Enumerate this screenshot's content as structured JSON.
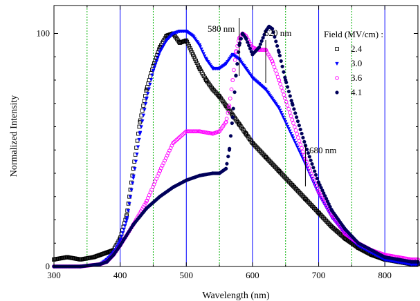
{
  "chart_data": {
    "type": "scatter",
    "title": "",
    "xlabel": "Wavelength (nm)",
    "ylabel": "Normalized Intensity",
    "xlim": [
      300,
      850
    ],
    "ylim": [
      0,
      112
    ],
    "x_ticks": [
      "300",
      "400",
      "500",
      "600",
      "700",
      "800"
    ],
    "y_ticks": [
      "0",
      "100"
    ],
    "y_tick_values": [
      0,
      100
    ],
    "grid": {
      "major_x": [
        400,
        500,
        600,
        700,
        800
      ],
      "major_color": "#0000ff",
      "minor_x": [
        350,
        450,
        550,
        650,
        750
      ],
      "minor_color": "#00b000"
    },
    "legend": {
      "title": "Field (MV/cm) :",
      "position": "top-right"
    },
    "annotations": [
      {
        "text": "580 nm",
        "x": 580
      },
      {
        "text": "620 nm",
        "x": 620
      },
      {
        "text": "680 nm",
        "x": 680
      }
    ],
    "series": [
      {
        "name": "2.4",
        "color": "#000000",
        "marker": "square-open",
        "x": [
          300,
          320,
          340,
          360,
          380,
          390,
          400,
          410,
          420,
          430,
          440,
          450,
          460,
          470,
          480,
          490,
          500,
          510,
          520,
          530,
          540,
          550,
          560,
          570,
          580,
          590,
          600,
          620,
          640,
          660,
          680,
          700,
          720,
          740,
          760,
          780,
          800,
          820,
          840,
          850
        ],
        "y": [
          3,
          4,
          3,
          4,
          6,
          7,
          12,
          22,
          42,
          62,
          76,
          86,
          94,
          99,
          100,
          96,
          97,
          91,
          85,
          80,
          76,
          73,
          69,
          65,
          61,
          57,
          53,
          47,
          41,
          35,
          29,
          23,
          17,
          12,
          8,
          5,
          3,
          2,
          1,
          1
        ]
      },
      {
        "name": "3.0",
        "color": "#0000ff",
        "marker": "triangle-down-filled",
        "x": [
          300,
          340,
          370,
          380,
          390,
          400,
          410,
          420,
          430,
          440,
          450,
          460,
          470,
          480,
          490,
          500,
          510,
          520,
          530,
          540,
          550,
          560,
          570,
          580,
          590,
          600,
          620,
          640,
          660,
          680,
          700,
          720,
          740,
          760,
          780,
          800,
          820,
          840,
          850
        ],
        "y": [
          0,
          0,
          1,
          3,
          6,
          11,
          20,
          38,
          57,
          72,
          84,
          92,
          97,
          100,
          101,
          101,
          99,
          95,
          89,
          85,
          85,
          87,
          91,
          89,
          85,
          81,
          76,
          68,
          56,
          44,
          31,
          21,
          14,
          9,
          6,
          3,
          2,
          1,
          1
        ]
      },
      {
        "name": "3.6",
        "color": "#ff00ff",
        "marker": "circle-open",
        "x": [
          300,
          340,
          370,
          380,
          390,
          400,
          420,
          440,
          460,
          480,
          500,
          520,
          540,
          550,
          560,
          565,
          570,
          575,
          580,
          585,
          590,
          600,
          610,
          620,
          630,
          640,
          660,
          680,
          700,
          720,
          740,
          760,
          780,
          800,
          820,
          840,
          850
        ],
        "y": [
          0,
          0,
          1,
          2,
          5,
          9,
          18,
          28,
          41,
          53,
          58,
          58,
          57,
          58,
          62,
          69,
          80,
          92,
          98,
          100,
          99,
          94,
          93,
          93,
          88,
          80,
          63,
          46,
          32,
          22,
          14,
          10,
          7,
          5,
          4,
          3,
          3
        ]
      },
      {
        "name": "4.1",
        "color": "#00005a",
        "marker": "circle-filled",
        "x": [
          300,
          340,
          370,
          380,
          390,
          400,
          420,
          440,
          460,
          480,
          500,
          520,
          540,
          550,
          560,
          565,
          570,
          575,
          580,
          585,
          590,
          600,
          610,
          620,
          625,
          630,
          640,
          650,
          660,
          680,
          700,
          720,
          740,
          760,
          780,
          800,
          820,
          840,
          850
        ],
        "y": [
          0,
          0,
          1,
          2,
          5,
          9,
          18,
          25,
          30,
          34,
          37,
          39,
          40,
          40,
          42,
          50,
          64,
          82,
          95,
          100,
          98,
          91,
          94,
          101,
          103,
          102,
          92,
          80,
          70,
          52,
          36,
          24,
          16,
          10,
          7,
          4,
          3,
          2,
          2
        ]
      }
    ]
  }
}
